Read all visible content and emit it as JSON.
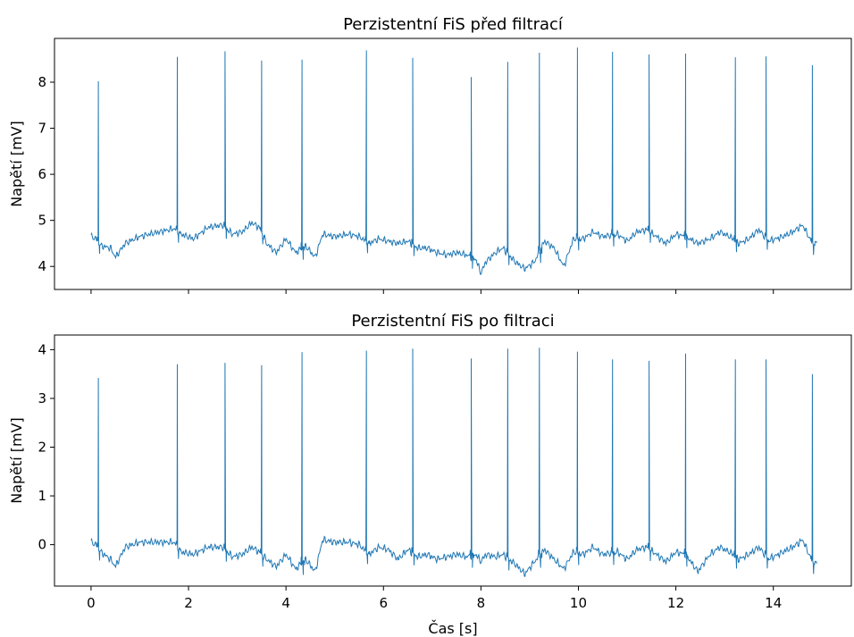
{
  "chart_data": [
    {
      "type": "line",
      "title": "Perzistentní FiS před filtrací",
      "xlabel": "",
      "ylabel": "Napětí [mV]",
      "xlim": [
        -0.75,
        15.6
      ],
      "ylim": [
        3.5,
        8.95
      ],
      "xticks": [
        0,
        2,
        4,
        6,
        8,
        10,
        12,
        14
      ],
      "yticks": [
        4,
        5,
        6,
        7,
        8
      ],
      "xticklabels_visible": false,
      "line_color": "#1f77b4",
      "grid": false,
      "baseline_points": [
        [
          0.0,
          4.65
        ],
        [
          0.1,
          4.6
        ],
        [
          0.2,
          4.45
        ],
        [
          0.4,
          4.4
        ],
        [
          0.5,
          4.2
        ],
        [
          0.7,
          4.5
        ],
        [
          1.0,
          4.65
        ],
        [
          1.4,
          4.75
        ],
        [
          1.7,
          4.82
        ],
        [
          1.85,
          4.7
        ],
        [
          2.1,
          4.6
        ],
        [
          2.4,
          4.85
        ],
        [
          2.7,
          4.9
        ],
        [
          2.9,
          4.7
        ],
        [
          3.1,
          4.75
        ],
        [
          3.3,
          4.95
        ],
        [
          3.45,
          4.85
        ],
        [
          3.6,
          4.5
        ],
        [
          3.8,
          4.3
        ],
        [
          4.0,
          4.6
        ],
        [
          4.2,
          4.3
        ],
        [
          4.4,
          4.45
        ],
        [
          4.6,
          4.2
        ],
        [
          4.75,
          4.7
        ],
        [
          5.0,
          4.65
        ],
        [
          5.3,
          4.7
        ],
        [
          5.5,
          4.65
        ],
        [
          5.7,
          4.5
        ],
        [
          5.9,
          4.6
        ],
        [
          6.1,
          4.55
        ],
        [
          6.3,
          4.5
        ],
        [
          6.5,
          4.55
        ],
        [
          6.7,
          4.4
        ],
        [
          6.9,
          4.4
        ],
        [
          7.1,
          4.3
        ],
        [
          7.3,
          4.25
        ],
        [
          7.5,
          4.3
        ],
        [
          7.7,
          4.25
        ],
        [
          7.9,
          4.15
        ],
        [
          8.0,
          3.85
        ],
        [
          8.1,
          4.1
        ],
        [
          8.3,
          4.3
        ],
        [
          8.45,
          4.4
        ],
        [
          8.7,
          4.1
        ],
        [
          8.9,
          3.95
        ],
        [
          9.1,
          4.1
        ],
        [
          9.3,
          4.55
        ],
        [
          9.5,
          4.4
        ],
        [
          9.7,
          4.0
        ],
        [
          9.9,
          4.6
        ],
        [
          10.1,
          4.6
        ],
        [
          10.3,
          4.75
        ],
        [
          10.5,
          4.65
        ],
        [
          10.8,
          4.7
        ],
        [
          11.0,
          4.55
        ],
        [
          11.2,
          4.75
        ],
        [
          11.4,
          4.8
        ],
        [
          11.6,
          4.65
        ],
        [
          11.8,
          4.5
        ],
        [
          12.0,
          4.7
        ],
        [
          12.2,
          4.65
        ],
        [
          12.45,
          4.5
        ],
        [
          12.7,
          4.6
        ],
        [
          12.9,
          4.75
        ],
        [
          13.1,
          4.65
        ],
        [
          13.3,
          4.5
        ],
        [
          13.5,
          4.6
        ],
        [
          13.7,
          4.8
        ],
        [
          13.9,
          4.55
        ],
        [
          14.2,
          4.65
        ],
        [
          14.4,
          4.75
        ],
        [
          14.6,
          4.9
        ],
        [
          14.8,
          4.5
        ],
        [
          14.9,
          4.5
        ]
      ],
      "spikes": [
        [
          0.15,
          8.02
        ],
        [
          1.77,
          8.55
        ],
        [
          2.75,
          8.67
        ],
        [
          3.5,
          8.47
        ],
        [
          4.33,
          8.49
        ],
        [
          5.65,
          8.69
        ],
        [
          6.6,
          8.53
        ],
        [
          7.8,
          8.11
        ],
        [
          8.55,
          8.44
        ],
        [
          9.2,
          8.64
        ],
        [
          9.98,
          8.75
        ],
        [
          10.7,
          8.66
        ],
        [
          11.45,
          8.6
        ],
        [
          12.2,
          8.62
        ],
        [
          13.22,
          8.54
        ],
        [
          13.85,
          8.56
        ],
        [
          14.8,
          8.37
        ]
      ]
    },
    {
      "type": "line",
      "title": "Perzistentní FiS po filtraci",
      "xlabel": "Čas [s]",
      "ylabel": "Napětí [mV]",
      "xlim": [
        -0.75,
        15.6
      ],
      "ylim": [
        -0.85,
        4.3
      ],
      "xticks": [
        0,
        2,
        4,
        6,
        8,
        10,
        12,
        14
      ],
      "yticks": [
        0,
        1,
        2,
        3,
        4
      ],
      "xticklabels_visible": true,
      "line_color": "#1f77b4",
      "grid": false,
      "baseline_points": [
        [
          0.0,
          0.05
        ],
        [
          0.1,
          0.0
        ],
        [
          0.2,
          -0.15
        ],
        [
          0.4,
          -0.3
        ],
        [
          0.5,
          -0.45
        ],
        [
          0.7,
          -0.05
        ],
        [
          1.0,
          0.05
        ],
        [
          1.4,
          0.05
        ],
        [
          1.7,
          0.05
        ],
        [
          1.85,
          -0.15
        ],
        [
          2.1,
          -0.2
        ],
        [
          2.4,
          -0.05
        ],
        [
          2.7,
          -0.05
        ],
        [
          2.9,
          -0.25
        ],
        [
          3.1,
          -0.2
        ],
        [
          3.3,
          -0.05
        ],
        [
          3.45,
          -0.15
        ],
        [
          3.6,
          -0.3
        ],
        [
          3.8,
          -0.45
        ],
        [
          4.0,
          -0.2
        ],
        [
          4.2,
          -0.5
        ],
        [
          4.4,
          -0.3
        ],
        [
          4.6,
          -0.55
        ],
        [
          4.75,
          0.1
        ],
        [
          5.0,
          0.05
        ],
        [
          5.3,
          0.05
        ],
        [
          5.5,
          0.0
        ],
        [
          5.7,
          -0.2
        ],
        [
          5.9,
          -0.05
        ],
        [
          6.1,
          -0.1
        ],
        [
          6.3,
          -0.3
        ],
        [
          6.5,
          -0.1
        ],
        [
          6.7,
          -0.25
        ],
        [
          6.9,
          -0.2
        ],
        [
          7.1,
          -0.3
        ],
        [
          7.3,
          -0.25
        ],
        [
          7.5,
          -0.2
        ],
        [
          7.7,
          -0.25
        ],
        [
          7.9,
          -0.2
        ],
        [
          8.0,
          -0.35
        ],
        [
          8.1,
          -0.2
        ],
        [
          8.3,
          -0.25
        ],
        [
          8.45,
          -0.2
        ],
        [
          8.7,
          -0.4
        ],
        [
          8.9,
          -0.6
        ],
        [
          9.1,
          -0.35
        ],
        [
          9.3,
          -0.1
        ],
        [
          9.5,
          -0.3
        ],
        [
          9.7,
          -0.5
        ],
        [
          9.9,
          -0.15
        ],
        [
          10.1,
          -0.2
        ],
        [
          10.3,
          -0.05
        ],
        [
          10.5,
          -0.2
        ],
        [
          10.8,
          -0.15
        ],
        [
          11.0,
          -0.3
        ],
        [
          11.2,
          -0.1
        ],
        [
          11.4,
          -0.05
        ],
        [
          11.6,
          -0.2
        ],
        [
          11.8,
          -0.35
        ],
        [
          12.0,
          -0.15
        ],
        [
          12.2,
          -0.2
        ],
        [
          12.45,
          -0.55
        ],
        [
          12.7,
          -0.2
        ],
        [
          12.9,
          -0.05
        ],
        [
          13.1,
          -0.15
        ],
        [
          13.3,
          -0.3
        ],
        [
          13.5,
          -0.2
        ],
        [
          13.7,
          -0.05
        ],
        [
          13.9,
          -0.3
        ],
        [
          14.2,
          -0.15
        ],
        [
          14.4,
          -0.05
        ],
        [
          14.6,
          0.1
        ],
        [
          14.8,
          -0.35
        ],
        [
          14.9,
          -0.4
        ]
      ],
      "spikes": [
        [
          0.15,
          3.42
        ],
        [
          1.77,
          3.7
        ],
        [
          2.75,
          3.73
        ],
        [
          3.5,
          3.68
        ],
        [
          4.33,
          3.95
        ],
        [
          5.65,
          3.98
        ],
        [
          6.6,
          4.02
        ],
        [
          7.8,
          3.82
        ],
        [
          8.55,
          4.02
        ],
        [
          9.2,
          4.04
        ],
        [
          9.98,
          3.96
        ],
        [
          10.7,
          3.8
        ],
        [
          11.45,
          3.77
        ],
        [
          12.2,
          3.92
        ],
        [
          13.22,
          3.8
        ],
        [
          13.85,
          3.8
        ],
        [
          14.8,
          3.5
        ]
      ]
    }
  ]
}
